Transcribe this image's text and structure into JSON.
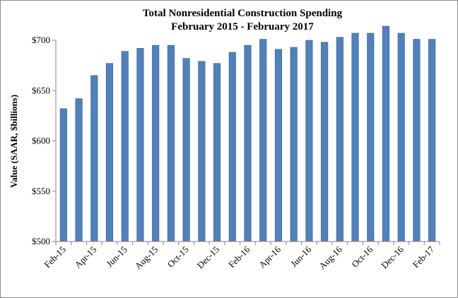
{
  "chart_data": {
    "type": "bar",
    "title": "Total Nonresidential Construction Spending",
    "subtitle": "February 2015 - February 2017",
    "xlabel": "",
    "ylabel": "Value (SAAR, $billions)",
    "ylim": [
      500,
      700
    ],
    "yticks": [
      500,
      550,
      600,
      650,
      700
    ],
    "ytick_labels": [
      "$500",
      "$550",
      "$600",
      "$650",
      "$700"
    ],
    "categories": [
      "Feb-15",
      "Mar-15",
      "Apr-15",
      "May-15",
      "Jun-15",
      "Jul-15",
      "Aug-15",
      "Sep-15",
      "Oct-15",
      "Nov-15",
      "Dec-15",
      "Jan-16",
      "Feb-16",
      "Mar-16",
      "Apr-16",
      "May-16",
      "Jun-16",
      "Jul-16",
      "Aug-16",
      "Sep-16",
      "Oct-16",
      "Nov-16",
      "Dec-16",
      "Jan-17",
      "Feb-17"
    ],
    "xtick_labels": [
      "Feb-15",
      "Apr-15",
      "Jun-15",
      "Aug-15",
      "Oct-15",
      "Dec-15",
      "Feb-16",
      "Apr-16",
      "Jun-16",
      "Aug-16",
      "Oct-16",
      "Dec-16",
      "Feb-17"
    ],
    "values": [
      632,
      642,
      665,
      677,
      689,
      692,
      695,
      695,
      682,
      679,
      677,
      688,
      695,
      701,
      691,
      693,
      700,
      698,
      703,
      707,
      707,
      714,
      707,
      701,
      701
    ],
    "grid": false,
    "legend": "none",
    "bar_color": "#4f81bd",
    "bar_edge_color": "#385d8a"
  }
}
